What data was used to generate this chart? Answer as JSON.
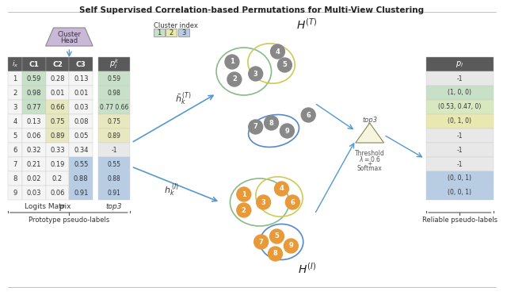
{
  "title": "Self Supervised Correlation-based Permutations for Multi-View Clustering",
  "table_headers": [
    "i_x",
    "C1",
    "C2",
    "C3"
  ],
  "table_rows": [
    [
      1,
      0.59,
      0.28,
      0.13
    ],
    [
      2,
      0.98,
      0.01,
      0.01
    ],
    [
      3,
      0.77,
      0.66,
      0.03
    ],
    [
      4,
      0.13,
      0.75,
      0.08
    ],
    [
      5,
      0.06,
      0.89,
      0.05
    ],
    [
      6,
      0.32,
      0.33,
      0.34
    ],
    [
      7,
      0.21,
      0.19,
      0.55
    ],
    [
      8,
      0.02,
      0.2,
      0.88
    ],
    [
      9,
      0.03,
      0.06,
      0.91
    ]
  ],
  "top3_values": [
    "0.59",
    "0.98",
    "0.77 0.66",
    "0.75",
    "0.89",
    "-1",
    "0.55",
    "0.88",
    "0.91"
  ],
  "top3_colors": [
    "#c8dfc8",
    "#c8dfc8",
    "#c8dfc8",
    "#e8e8c0",
    "#e8e8c0",
    "#e8e8e8",
    "#b8cce4",
    "#b8cce4",
    "#b8cce4"
  ],
  "pl_values": [
    "-1",
    "(1, 0, 0)",
    "(0.53, 0.47, 0)",
    "(0, 1, 0)",
    "-1",
    "-1",
    "-1",
    "(0, 0, 1)",
    "(0, 0, 1)"
  ],
  "pl_colors": [
    "#e8e8e8",
    "#c8dfc8",
    "#d8e8c0",
    "#e8e8b0",
    "#e8e8e8",
    "#e8e8e8",
    "#e8e8e8",
    "#b8cce4",
    "#b8cce4"
  ],
  "cluster_index_colors": [
    "#c8dfc8",
    "#e8e8b0",
    "#b8cce4"
  ],
  "header_color": "#5a5a5a",
  "header_text_color": "#ffffff",
  "row_bg": "#f5f5f5",
  "c1_highlight": [
    "#c8dfc8",
    "#c8dfc8",
    "#c8dfc8",
    "#f5f5f5",
    "#f5f5f5",
    "#f5f5f5",
    "#f5f5f5",
    "#f5f5f5",
    "#f5f5f5"
  ],
  "c2_highlight": [
    "#f5f5f5",
    "#f5f5f5",
    "#e8e8c0",
    "#e8e8c0",
    "#e8e8c0",
    "#f5f5f5",
    "#f5f5f5",
    "#f5f5f5",
    "#f5f5f5"
  ],
  "c3_highlight": [
    "#f5f5f5",
    "#f5f5f5",
    "#f5f5f5",
    "#f5f5f5",
    "#f5f5f5",
    "#f5f5f5",
    "#b8cce4",
    "#b8cce4",
    "#b8cce4"
  ]
}
